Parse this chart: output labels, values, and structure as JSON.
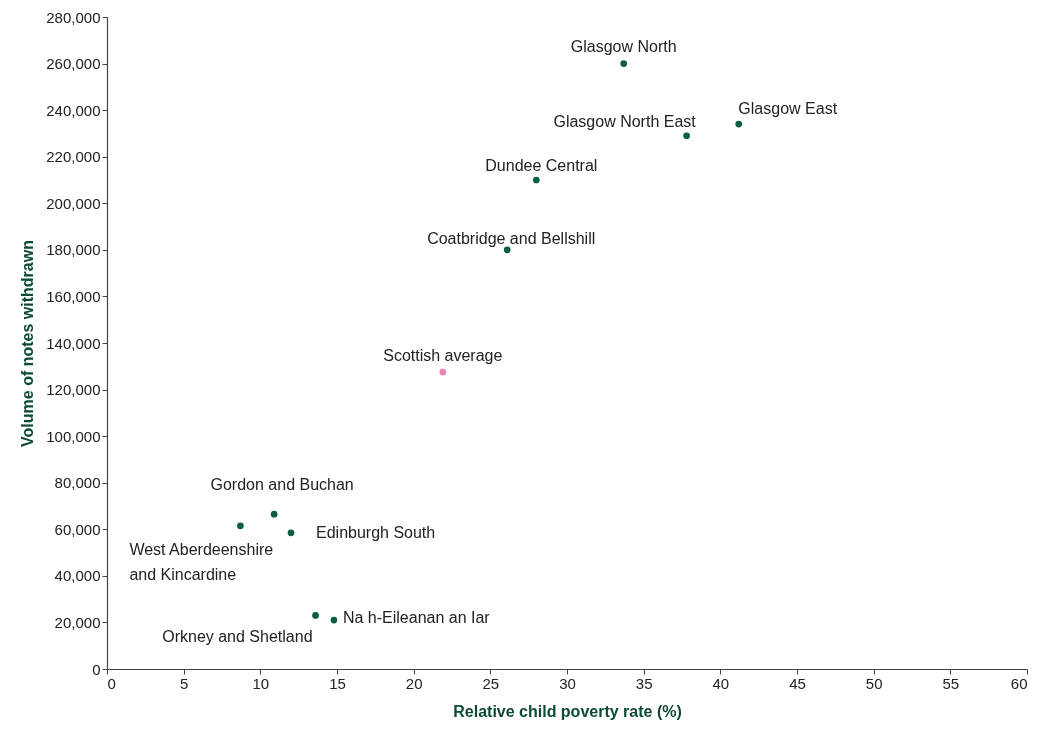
{
  "chart_data": {
    "type": "scatter",
    "xlabel": "Relative child poverty rate (%)",
    "ylabel": "Volume of notes withdrawn",
    "xlim": [
      0,
      60
    ],
    "ylim": [
      0,
      280000
    ],
    "xticks": [
      0,
      5,
      10,
      15,
      20,
      25,
      30,
      35,
      40,
      45,
      50,
      55,
      60
    ],
    "yticks": [
      {
        "value": 0,
        "label": "0"
      },
      {
        "value": 20000,
        "label": "20,000"
      },
      {
        "value": 40000,
        "label": "40,000"
      },
      {
        "value": 60000,
        "label": "60,000"
      },
      {
        "value": 80000,
        "label": "80,000"
      },
      {
        "value": 100000,
        "label": "100,000"
      },
      {
        "value": 120000,
        "label": "120,000"
      },
      {
        "value": 140000,
        "label": "140,000"
      },
      {
        "value": 160000,
        "label": "160,000"
      },
      {
        "value": 180000,
        "label": "180,000"
      },
      {
        "value": 200000,
        "label": "200,000"
      },
      {
        "value": 220000,
        "label": "220,000"
      },
      {
        "value": 240000,
        "label": "240,000"
      },
      {
        "value": 260000,
        "label": "260,000"
      },
      {
        "value": 280000,
        "label": "280,000"
      }
    ],
    "grid": false,
    "legend": false,
    "marker": "circle",
    "series": [
      {
        "name": "Glasgow North",
        "color": "#0b5e3f",
        "x": [
          33.7
        ],
        "values": [
          260000
        ]
      },
      {
        "name": "Glasgow East",
        "color": "#0b5e3f",
        "x": [
          41.2
        ],
        "values": [
          234000
        ]
      },
      {
        "name": "Glasgow North East",
        "color": "#0b5e3f",
        "x": [
          37.8
        ],
        "values": [
          229000
        ]
      },
      {
        "name": "Dundee Central",
        "color": "#0b5e3f",
        "x": [
          28
        ],
        "values": [
          210000
        ]
      },
      {
        "name": "Coatbridge and Bellshill",
        "color": "#0b5e3f",
        "x": [
          26.1
        ],
        "values": [
          180000
        ]
      },
      {
        "name": "Scottish average",
        "color": "#e883b4",
        "x": [
          21.9
        ],
        "values": [
          127500
        ]
      },
      {
        "name": "Gordon and Buchan",
        "color": "#0b5e3f",
        "x": [
          10.9
        ],
        "values": [
          66500
        ]
      },
      {
        "name": "West Aberdeenshire and Kincardine",
        "color": "#0b5e3f",
        "x": [
          8.7
        ],
        "values": [
          61500
        ]
      },
      {
        "name": "Edinburgh South",
        "color": "#0b5e3f",
        "x": [
          12
        ],
        "values": [
          58500
        ]
      },
      {
        "name": "Orkney and Shetland",
        "color": "#0b5e3f",
        "x": [
          13.6
        ],
        "values": [
          23000
        ]
      },
      {
        "name": "Na h-Eileanan an Iar",
        "color": "#0b5e3f",
        "x": [
          14.8
        ],
        "values": [
          21000
        ]
      }
    ]
  }
}
